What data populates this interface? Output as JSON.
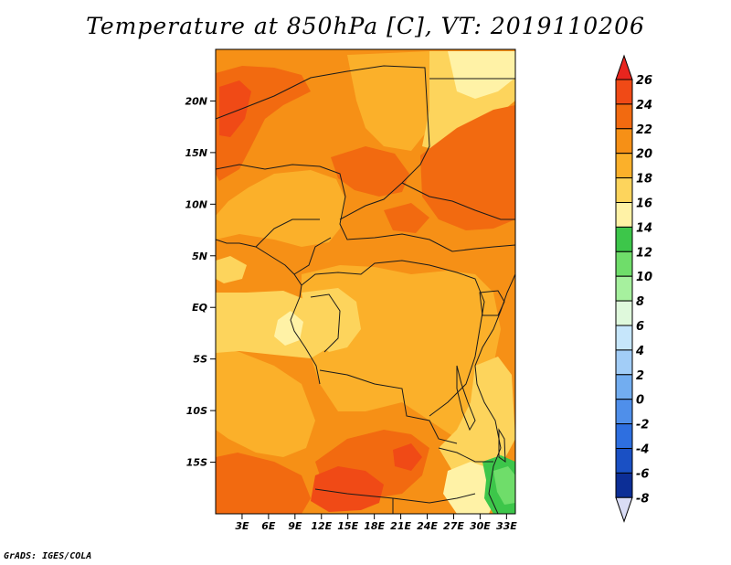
{
  "title": "Temperature at 850hPa [C], VT: 2019110206",
  "credit": "GrADS: IGES/COLA",
  "map": {
    "lon_range": [
      0,
      34
    ],
    "lat_range": [
      -20,
      25
    ],
    "lat_ticks": [
      {
        "value": 20,
        "label": "20N"
      },
      {
        "value": 15,
        "label": "15N"
      },
      {
        "value": 10,
        "label": "10N"
      },
      {
        "value": 5,
        "label": "5N"
      },
      {
        "value": 0,
        "label": "EQ"
      },
      {
        "value": -5,
        "label": "5S"
      },
      {
        "value": -10,
        "label": "10S"
      },
      {
        "value": -15,
        "label": "15S"
      }
    ],
    "lon_ticks": [
      {
        "value": 3,
        "label": "3E"
      },
      {
        "value": 6,
        "label": "6E"
      },
      {
        "value": 9,
        "label": "9E"
      },
      {
        "value": 12,
        "label": "12E"
      },
      {
        "value": 15,
        "label": "15E"
      },
      {
        "value": 18,
        "label": "18E"
      },
      {
        "value": 21,
        "label": "21E"
      },
      {
        "value": 24,
        "label": "24E"
      },
      {
        "value": 27,
        "label": "27E"
      },
      {
        "value": 30,
        "label": "30E"
      },
      {
        "value": 33,
        "label": "33E"
      }
    ]
  },
  "colorbar": {
    "labels": [
      "26",
      "24",
      "22",
      "20",
      "18",
      "16",
      "14",
      "12",
      "10",
      "8",
      "6",
      "4",
      "2",
      "0",
      "-2",
      "-4",
      "-6",
      "-8"
    ],
    "colors": {
      "above_26": "#e8251e",
      "24_26": "#f04a16",
      "22_24": "#f26a10",
      "20_22": "#f69016",
      "18_20": "#fbb02a",
      "16_18": "#fdd45c",
      "14_16": "#fff2a6",
      "12_14": "#3dc64a",
      "10_12": "#6fdd6a",
      "8_10": "#a6f09e",
      "6_8": "#dff9dc",
      "4_6": "#c6e6fb",
      "2_4": "#a2cdf7",
      "0_2": "#72adf0",
      "m2_0": "#4f8fea",
      "m4_m2": "#2e6fe0",
      "m6_m4": "#1a50c4",
      "m8_m6": "#0c2e96",
      "below_m8": "#d9dcf5"
    }
  }
}
